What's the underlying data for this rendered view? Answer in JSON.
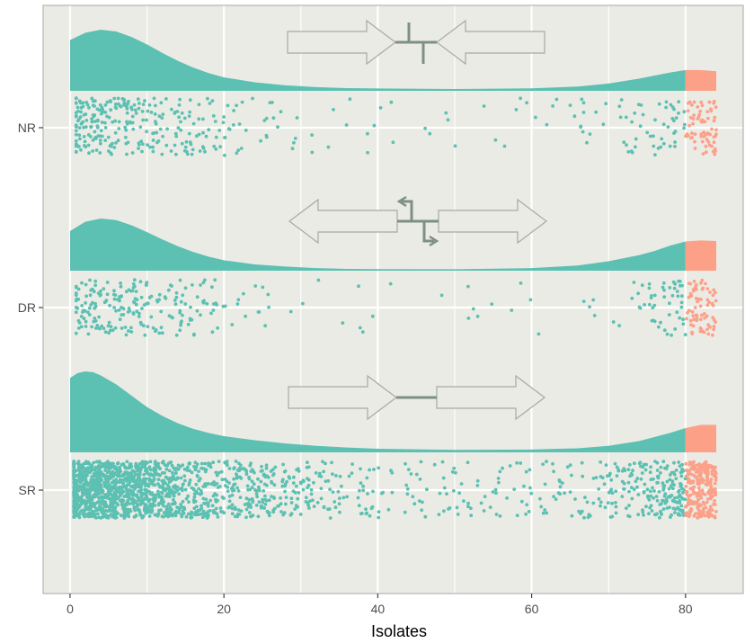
{
  "chart_data": {
    "type": "scatter",
    "subtype": "raincloud (density + jittered points)",
    "title": "",
    "xlabel": "Isolates",
    "ylabel": "",
    "xlim": [
      -3.5,
      87.5
    ],
    "x_ticks": [
      0,
      20,
      40,
      60,
      80
    ],
    "x_tick_labels": [
      "0",
      "20",
      "40",
      "60",
      "80"
    ],
    "categories": [
      "NR",
      "DR",
      "SR"
    ],
    "threshold": 80,
    "density_max_x": 84,
    "grid": true,
    "legend": "none",
    "colors": {
      "panel_bg": "#EBEBE5",
      "grid": "#FFFFFF",
      "main": "#5CC0B2",
      "highlight": "#FDA088",
      "gene_outline": "#A8A8A8",
      "gene_fill": "#EBEBE5",
      "gene_line": "#7D8F87"
    },
    "series": [
      {
        "category": "NR",
        "gene_arrangement": "convergent (head-to-head)",
        "point_count_left": 380,
        "point_count_right": 70,
        "jitter_min_x": 0.8,
        "density": [
          [
            0,
            0.83
          ],
          [
            2,
            0.95
          ],
          [
            4,
            1.0
          ],
          [
            6,
            0.97
          ],
          [
            8,
            0.88
          ],
          [
            10,
            0.76
          ],
          [
            12,
            0.62
          ],
          [
            14,
            0.49
          ],
          [
            16,
            0.38
          ],
          [
            18,
            0.29
          ],
          [
            20,
            0.22
          ],
          [
            24,
            0.14
          ],
          [
            28,
            0.09
          ],
          [
            32,
            0.06
          ],
          [
            36,
            0.045
          ],
          [
            40,
            0.038
          ],
          [
            50,
            0.03
          ],
          [
            60,
            0.04
          ],
          [
            66,
            0.07
          ],
          [
            70,
            0.12
          ],
          [
            74,
            0.2
          ],
          [
            76,
            0.25
          ],
          [
            78,
            0.3
          ],
          [
            80,
            0.34
          ],
          [
            82,
            0.34
          ],
          [
            84,
            0.32
          ]
        ]
      },
      {
        "category": "DR",
        "gene_arrangement": "divergent (back-to-back)",
        "point_count_left": 290,
        "point_count_right": 70,
        "jitter_min_x": 0.8,
        "density": [
          [
            0,
            0.76
          ],
          [
            2,
            0.94
          ],
          [
            4,
            1.0
          ],
          [
            6,
            0.97
          ],
          [
            8,
            0.87
          ],
          [
            10,
            0.74
          ],
          [
            12,
            0.6
          ],
          [
            14,
            0.47
          ],
          [
            16,
            0.36
          ],
          [
            18,
            0.27
          ],
          [
            20,
            0.2
          ],
          [
            24,
            0.12
          ],
          [
            28,
            0.08
          ],
          [
            32,
            0.05
          ],
          [
            36,
            0.035
          ],
          [
            40,
            0.03
          ],
          [
            50,
            0.028
          ],
          [
            60,
            0.05
          ],
          [
            66,
            0.1
          ],
          [
            70,
            0.18
          ],
          [
            74,
            0.3
          ],
          [
            76,
            0.38
          ],
          [
            78,
            0.48
          ],
          [
            80,
            0.56
          ],
          [
            82,
            0.58
          ],
          [
            84,
            0.57
          ]
        ]
      },
      {
        "category": "SR",
        "gene_arrangement": "tandem (same direction)",
        "point_count_left": 1850,
        "point_count_right": 230,
        "jitter_min_x": 0.5,
        "density": [
          [
            0,
            0.92
          ],
          [
            1,
            0.98
          ],
          [
            2,
            1.0
          ],
          [
            3,
            0.99
          ],
          [
            4,
            0.95
          ],
          [
            6,
            0.84
          ],
          [
            8,
            0.7
          ],
          [
            10,
            0.56
          ],
          [
            12,
            0.45
          ],
          [
            14,
            0.36
          ],
          [
            16,
            0.29
          ],
          [
            18,
            0.24
          ],
          [
            20,
            0.2
          ],
          [
            24,
            0.15
          ],
          [
            28,
            0.11
          ],
          [
            32,
            0.08
          ],
          [
            36,
            0.06
          ],
          [
            40,
            0.045
          ],
          [
            50,
            0.03
          ],
          [
            60,
            0.035
          ],
          [
            66,
            0.05
          ],
          [
            70,
            0.08
          ],
          [
            74,
            0.14
          ],
          [
            76,
            0.19
          ],
          [
            78,
            0.24
          ],
          [
            80,
            0.3
          ],
          [
            82,
            0.34
          ],
          [
            84,
            0.34
          ]
        ]
      }
    ]
  }
}
